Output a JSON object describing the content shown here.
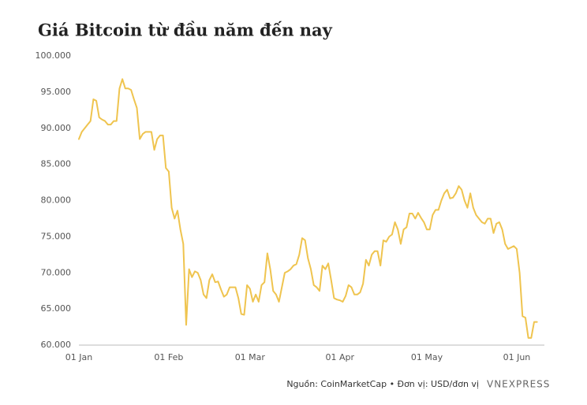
{
  "chart_data": {
    "type": "line",
    "title": "Giá Bitcoin từ đầu năm đến nay",
    "source": "Nguồn: CoinMarketCap • Đơn vị: USD/đơn vị",
    "logo": "VNEXPRESS",
    "categories": [
      "01 Jan",
      null,
      null,
      null,
      null,
      null,
      null,
      null,
      null,
      null,
      null,
      null,
      null,
      null,
      null,
      null,
      null,
      null,
      null,
      null,
      null,
      null,
      null,
      null,
      null,
      null,
      null,
      null,
      null,
      null,
      null,
      "01 Feb",
      null,
      null,
      null,
      null,
      null,
      null,
      null,
      null,
      null,
      null,
      null,
      null,
      null,
      null,
      null,
      null,
      null,
      null,
      null,
      null,
      null,
      null,
      null,
      null,
      null,
      null,
      null,
      "01 Mar",
      null,
      null,
      null,
      null,
      null,
      null,
      null,
      null,
      null,
      null,
      null,
      null,
      null,
      null,
      null,
      null,
      null,
      null,
      null,
      null,
      null,
      null,
      null,
      null,
      null,
      null,
      null,
      null,
      null,
      null,
      "01 Apr",
      null,
      null,
      null,
      null,
      null,
      null,
      null,
      null,
      null,
      null,
      null,
      null,
      null,
      null,
      null,
      null,
      null,
      null,
      null,
      null,
      null,
      null,
      null,
      null,
      null,
      null,
      null,
      null,
      null,
      "01 May",
      null,
      null,
      null,
      null,
      null,
      null,
      null,
      null,
      null,
      null,
      null,
      null,
      null,
      null,
      null,
      null,
      null,
      null,
      null,
      null,
      null,
      null,
      null,
      null,
      null,
      null,
      null,
      null,
      null,
      null,
      "01 Jun",
      null,
      null,
      null,
      null,
      null,
      null,
      null
    ],
    "series": [
      {
        "name": "Bitcoin",
        "color": "#efc44f",
        "values": [
          88500,
          89500,
          90000,
          90500,
          91000,
          94000,
          93800,
          91500,
          91200,
          91000,
          90500,
          90500,
          91000,
          91000,
          95500,
          96800,
          95500,
          95500,
          95300,
          94000,
          92800,
          88500,
          89200,
          89500,
          89500,
          89500,
          87000,
          88500,
          89000,
          89000,
          84500,
          84000,
          79000,
          77500,
          78600,
          76000,
          74000,
          62800,
          70500,
          69400,
          70200,
          70000,
          69000,
          67000,
          66500,
          69000,
          69800,
          68700,
          68800,
          67700,
          66700,
          67000,
          68000,
          68000,
          68000,
          66500,
          64300,
          64200,
          68300,
          67800,
          66000,
          67000,
          66000,
          68300,
          68700,
          72700,
          70500,
          67500,
          67000,
          66000,
          68000,
          70000,
          70200,
          70500,
          71000,
          71200,
          72500,
          74800,
          74500,
          72000,
          70500,
          68300,
          68000,
          67500,
          71000,
          70500,
          71300,
          69000,
          66500,
          66300,
          66200,
          66000,
          66800,
          68300,
          68000,
          67000,
          67000,
          67300,
          68500,
          71800,
          71000,
          72500,
          73000,
          73000,
          71000,
          74500,
          74300,
          75000,
          75300,
          77000,
          76000,
          74000,
          76000,
          76300,
          78200,
          78200,
          77500,
          78300,
          77600,
          77000,
          76000,
          76000,
          78000,
          78700,
          78700,
          80000,
          81000,
          81500,
          80300,
          80400,
          81000,
          82000,
          81500,
          80000,
          79000,
          81000,
          79000,
          78000,
          77500,
          77000,
          76800,
          77500,
          77500,
          75500,
          76800,
          77000,
          76000,
          74000,
          73300,
          73500,
          73700,
          73300,
          70000,
          64000,
          63800,
          61000,
          61000,
          63200,
          63200
        ]
      }
    ],
    "ylim": [
      60000,
      100000
    ],
    "yticks": [
      {
        "value": 60000,
        "label": "60.000"
      },
      {
        "value": 65000,
        "label": "65.000"
      },
      {
        "value": 70000,
        "label": "70.000"
      },
      {
        "value": 75000,
        "label": "75.000"
      },
      {
        "value": 80000,
        "label": "80.000"
      },
      {
        "value": 85000,
        "label": "85.000"
      },
      {
        "value": 90000,
        "label": "90.000"
      },
      {
        "value": 95000,
        "label": "95.000"
      },
      {
        "value": 100000,
        "label": "100.000"
      }
    ],
    "grid": false
  }
}
